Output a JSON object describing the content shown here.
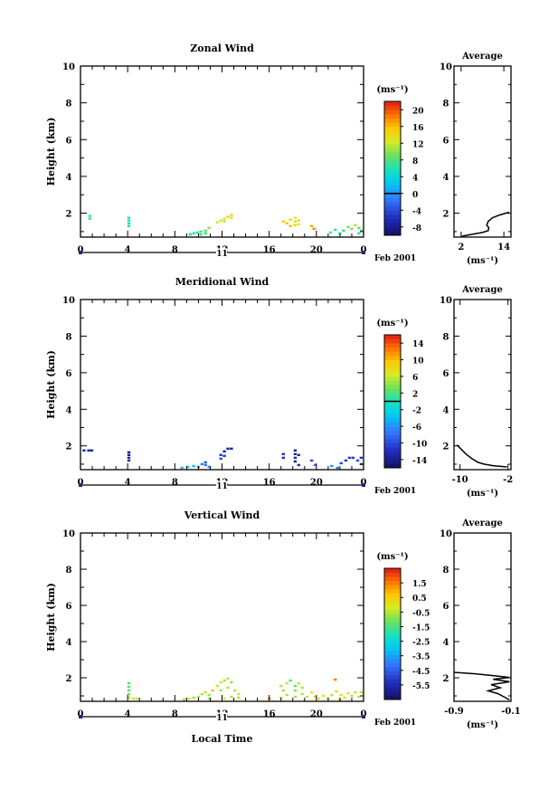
{
  "chart_data": [
    {
      "type": "heatmap",
      "title": "Zonal Wind",
      "ylabel": "Height (km)",
      "xlim": [
        0,
        24
      ],
      "ylim": [
        0.7,
        10
      ],
      "yticks": [
        "2",
        "4",
        "6",
        "8",
        "10"
      ],
      "xticks": [
        "0",
        "4",
        "8",
        "12",
        "16",
        "20",
        "0"
      ],
      "date_day": "11",
      "date_month": "Feb 2001",
      "colorbar": {
        "unit": "(ms⁻¹)",
        "ticks": [
          "-8",
          "-4",
          "0",
          "4",
          "8",
          "12",
          "16",
          "20"
        ],
        "range": [
          -10,
          22
        ],
        "zero_line": 0
      },
      "cells": [
        [
          0.8,
          1.85,
          7
        ],
        [
          0.8,
          1.7,
          7
        ],
        [
          4.1,
          1.75,
          6
        ],
        [
          4.1,
          1.6,
          6
        ],
        [
          4.1,
          1.45,
          6
        ],
        [
          4.1,
          1.3,
          6
        ],
        [
          9.3,
          0.85,
          5
        ],
        [
          9.6,
          0.9,
          6
        ],
        [
          9.9,
          0.95,
          7
        ],
        [
          10.2,
          0.85,
          6
        ],
        [
          10.2,
          1.0,
          8
        ],
        [
          10.6,
          1.05,
          9
        ],
        [
          10.6,
          0.9,
          7
        ],
        [
          10.9,
          1.2,
          10
        ],
        [
          11.6,
          1.5,
          12
        ],
        [
          11.9,
          1.6,
          13
        ],
        [
          12.2,
          1.7,
          13
        ],
        [
          12.5,
          1.8,
          14
        ],
        [
          12.8,
          1.9,
          14
        ],
        [
          12.8,
          1.75,
          13
        ],
        [
          12.2,
          1.55,
          12
        ],
        [
          17.2,
          1.55,
          15
        ],
        [
          17.5,
          1.45,
          16
        ],
        [
          17.8,
          1.65,
          15
        ],
        [
          18.2,
          1.75,
          13
        ],
        [
          18.2,
          1.55,
          14
        ],
        [
          18.2,
          1.35,
          15
        ],
        [
          18.5,
          1.6,
          12
        ],
        [
          18.5,
          1.4,
          13
        ],
        [
          17.8,
          1.3,
          16
        ],
        [
          19.6,
          1.3,
          17
        ],
        [
          19.8,
          1.15,
          18
        ],
        [
          21.2,
          0.95,
          8
        ],
        [
          21.6,
          1.1,
          7
        ],
        [
          22.0,
          0.9,
          6
        ],
        [
          22.3,
          1.05,
          7
        ],
        [
          22.7,
          1.25,
          9
        ],
        [
          23.0,
          1.15,
          10
        ],
        [
          23.3,
          1.35,
          11
        ],
        [
          23.6,
          1.2,
          9
        ],
        [
          23.8,
          1.05,
          8
        ],
        [
          23.6,
          0.9,
          7
        ]
      ],
      "average": {
        "title": "Average",
        "xlabel": "(ms⁻¹)",
        "xlim": [
          0,
          16
        ],
        "xticks": [
          "2",
          "14"
        ],
        "xtick_values": [
          2,
          14
        ],
        "yticks": [
          "2",
          "4",
          "6",
          "8",
          "10"
        ],
        "profile": [
          [
            2.2,
            0.75
          ],
          [
            5.0,
            0.85
          ],
          [
            8.0,
            0.95
          ],
          [
            9.6,
            1.05
          ],
          [
            9.8,
            1.2
          ],
          [
            9.2,
            1.35
          ],
          [
            9.6,
            1.55
          ],
          [
            10.8,
            1.75
          ],
          [
            12.8,
            1.9
          ],
          [
            14.5,
            2.0
          ],
          [
            15.5,
            2.05
          ]
        ]
      }
    },
    {
      "type": "heatmap",
      "title": "Meridional Wind",
      "ylabel": "Height (km)",
      "xlim": [
        0,
        24
      ],
      "ylim": [
        0.7,
        10
      ],
      "yticks": [
        "2",
        "4",
        "6",
        "8",
        "10"
      ],
      "xticks": [
        "0",
        "4",
        "8",
        "12",
        "16",
        "20",
        "0"
      ],
      "date_day": "11",
      "date_month": "Feb 2001",
      "colorbar": {
        "unit": "(ms⁻¹)",
        "ticks": [
          "-14",
          "-10",
          "-6",
          "-2",
          "2",
          "6",
          "10",
          "14"
        ],
        "range": [
          -16,
          16
        ],
        "zero_line": 0
      },
      "cells": [
        [
          0.3,
          1.75,
          -13
        ],
        [
          0.7,
          1.75,
          -13
        ],
        [
          0.95,
          1.75,
          -13
        ],
        [
          4.1,
          1.65,
          -13
        ],
        [
          4.1,
          1.5,
          -14
        ],
        [
          4.1,
          1.35,
          -12
        ],
        [
          4.1,
          1.2,
          -12
        ],
        [
          8.6,
          0.8,
          -4
        ],
        [
          9.1,
          0.85,
          -3
        ],
        [
          9.6,
          0.9,
          -4
        ],
        [
          10.0,
          0.85,
          -5
        ],
        [
          10.3,
          1.0,
          -7
        ],
        [
          10.6,
          1.1,
          -9
        ],
        [
          10.6,
          0.95,
          -8
        ],
        [
          10.9,
          0.85,
          -6
        ],
        [
          11.9,
          1.5,
          -11
        ],
        [
          11.9,
          1.3,
          -10
        ],
        [
          12.2,
          1.7,
          -12
        ],
        [
          12.5,
          1.85,
          -13
        ],
        [
          12.8,
          1.85,
          -13
        ],
        [
          12.2,
          1.45,
          -11
        ],
        [
          17.2,
          1.55,
          -12
        ],
        [
          17.2,
          1.35,
          -12
        ],
        [
          18.2,
          1.75,
          -14
        ],
        [
          18.2,
          1.55,
          -13
        ],
        [
          18.2,
          1.35,
          -13
        ],
        [
          18.2,
          1.15,
          -14
        ],
        [
          18.5,
          1.5,
          -12
        ],
        [
          18.5,
          0.95,
          -12
        ],
        [
          19.6,
          1.2,
          -10
        ],
        [
          19.9,
          0.95,
          -8
        ],
        [
          21.3,
          0.9,
          -6
        ],
        [
          21.8,
          0.8,
          -8
        ],
        [
          22.1,
          1.05,
          -10
        ],
        [
          22.5,
          1.2,
          -11
        ],
        [
          22.8,
          1.35,
          -11
        ],
        [
          23.1,
          1.35,
          -11
        ],
        [
          23.5,
          1.2,
          -10
        ],
        [
          23.8,
          1.0,
          -9
        ],
        [
          23.8,
          1.35,
          -11
        ]
      ],
      "average": {
        "title": "Average",
        "xlabel": "(ms⁻¹)",
        "xlim": [
          -11,
          -1.5
        ],
        "xticks": [
          "-10",
          "-2"
        ],
        "xtick_values": [
          -10,
          -2
        ],
        "yticks": [
          "2",
          "4",
          "6",
          "8",
          "10"
        ],
        "profile": [
          [
            -10.5,
            2.05
          ],
          [
            -10.2,
            1.95
          ],
          [
            -9.6,
            1.75
          ],
          [
            -9.0,
            1.55
          ],
          [
            -8.0,
            1.3
          ],
          [
            -7.0,
            1.1
          ],
          [
            -6.0,
            1.0
          ],
          [
            -4.5,
            0.92
          ],
          [
            -3.2,
            0.88
          ],
          [
            -2.2,
            0.85
          ]
        ]
      }
    },
    {
      "type": "heatmap",
      "title": "Vertical Wind",
      "ylabel": "Height (km)",
      "xlabel": "Local Time",
      "xlim": [
        0,
        24
      ],
      "ylim": [
        0.7,
        10
      ],
      "yticks": [
        "2",
        "4",
        "6",
        "8",
        "10"
      ],
      "xticks": [
        "0",
        "4",
        "8",
        "12",
        "16",
        "20",
        "0"
      ],
      "date_day": "11",
      "date_month": "Feb 2001",
      "colorbar": {
        "unit": "(ms⁻¹)",
        "ticks": [
          "-5.5",
          "-4.5",
          "-3.5",
          "-2.5",
          "-1.5",
          "-0.5",
          "0.5",
          "1.5"
        ],
        "range": [
          -6.5,
          2.5
        ]
      },
      "cells": [
        [
          4.1,
          1.7,
          -1.4
        ],
        [
          4.1,
          1.5,
          -1.5
        ],
        [
          4.1,
          1.3,
          -1.3
        ],
        [
          4.1,
          1.1,
          -1.0
        ],
        [
          4.1,
          0.9,
          -0.6
        ],
        [
          4.5,
          0.85,
          -0.3
        ],
        [
          4.8,
          0.85,
          -0.4
        ],
        [
          8.8,
          0.8,
          -0.6
        ],
        [
          9.2,
          0.85,
          -0.4
        ],
        [
          9.6,
          0.9,
          -0.7
        ],
        [
          10.0,
          0.95,
          -0.6
        ],
        [
          10.3,
          1.1,
          -0.5
        ],
        [
          10.6,
          1.2,
          -0.3
        ],
        [
          10.9,
          1.05,
          -0.7
        ],
        [
          10.9,
          0.85,
          -0.6
        ],
        [
          11.2,
          1.3,
          0.8
        ],
        [
          11.6,
          1.55,
          -0.4
        ],
        [
          11.9,
          1.75,
          -0.3
        ],
        [
          12.2,
          1.85,
          -0.6
        ],
        [
          12.5,
          1.95,
          -0.4
        ],
        [
          12.8,
          1.75,
          -0.8
        ],
        [
          12.5,
          1.45,
          -0.5
        ],
        [
          11.9,
          1.3,
          -0.6
        ],
        [
          13.1,
          1.3,
          -0.5
        ],
        [
          13.4,
          1.1,
          -0.4
        ],
        [
          13.4,
          0.9,
          -0.6
        ],
        [
          12.8,
          0.95,
          -0.5
        ],
        [
          12.2,
          0.85,
          -0.3
        ],
        [
          16.0,
          0.85,
          1.4
        ],
        [
          17.0,
          1.55,
          -0.6
        ],
        [
          17.2,
          1.3,
          -0.7
        ],
        [
          17.5,
          1.7,
          -0.5
        ],
        [
          17.8,
          1.85,
          -1.4
        ],
        [
          18.2,
          1.55,
          -1.3
        ],
        [
          18.2,
          1.3,
          -0.9
        ],
        [
          18.5,
          1.7,
          -0.4
        ],
        [
          18.8,
          1.45,
          -0.6
        ],
        [
          17.5,
          1.05,
          -0.6
        ],
        [
          18.8,
          1.1,
          -0.5
        ],
        [
          17.0,
          0.9,
          -0.3
        ],
        [
          18.2,
          0.95,
          -0.7
        ],
        [
          19.2,
          0.95,
          -0.4
        ],
        [
          19.6,
          1.2,
          -0.2
        ],
        [
          19.9,
          0.95,
          0.4
        ],
        [
          20.2,
          0.85,
          0.2
        ],
        [
          20.6,
          1.0,
          -0.1
        ],
        [
          21.0,
          0.85,
          -0.3
        ],
        [
          21.3,
          1.05,
          -0.5
        ],
        [
          21.7,
          1.25,
          -0.4
        ],
        [
          22.1,
          1.05,
          -0.2
        ],
        [
          22.4,
          0.9,
          0.1
        ],
        [
          22.7,
          1.15,
          -0.3
        ],
        [
          23.0,
          1.0,
          -0.6
        ],
        [
          23.3,
          1.2,
          -0.4
        ],
        [
          23.6,
          0.95,
          -0.5
        ],
        [
          23.8,
          1.2,
          -0.6
        ],
        [
          21.6,
          1.9,
          1.5
        ],
        [
          22.0,
          0.8,
          0.6
        ]
      ],
      "average": {
        "title": "Average",
        "xlabel": "(ms⁻¹)",
        "xlim": [
          -0.9,
          -0.1
        ],
        "xticks": [
          "-0.9",
          "-0.1"
        ],
        "xtick_values": [
          -0.9,
          -0.1
        ],
        "yticks": [
          "2",
          "4",
          "6",
          "8",
          "10"
        ],
        "profile": [
          [
            -0.9,
            2.3
          ],
          [
            -0.6,
            2.22
          ],
          [
            -0.35,
            2.12
          ],
          [
            -0.12,
            2.02
          ],
          [
            -0.35,
            1.92
          ],
          [
            -0.12,
            1.78
          ],
          [
            -0.38,
            1.62
          ],
          [
            -0.25,
            1.45
          ],
          [
            -0.42,
            1.28
          ],
          [
            -0.28,
            1.12
          ],
          [
            -0.2,
            0.95
          ],
          [
            -0.12,
            0.78
          ]
        ]
      }
    }
  ]
}
